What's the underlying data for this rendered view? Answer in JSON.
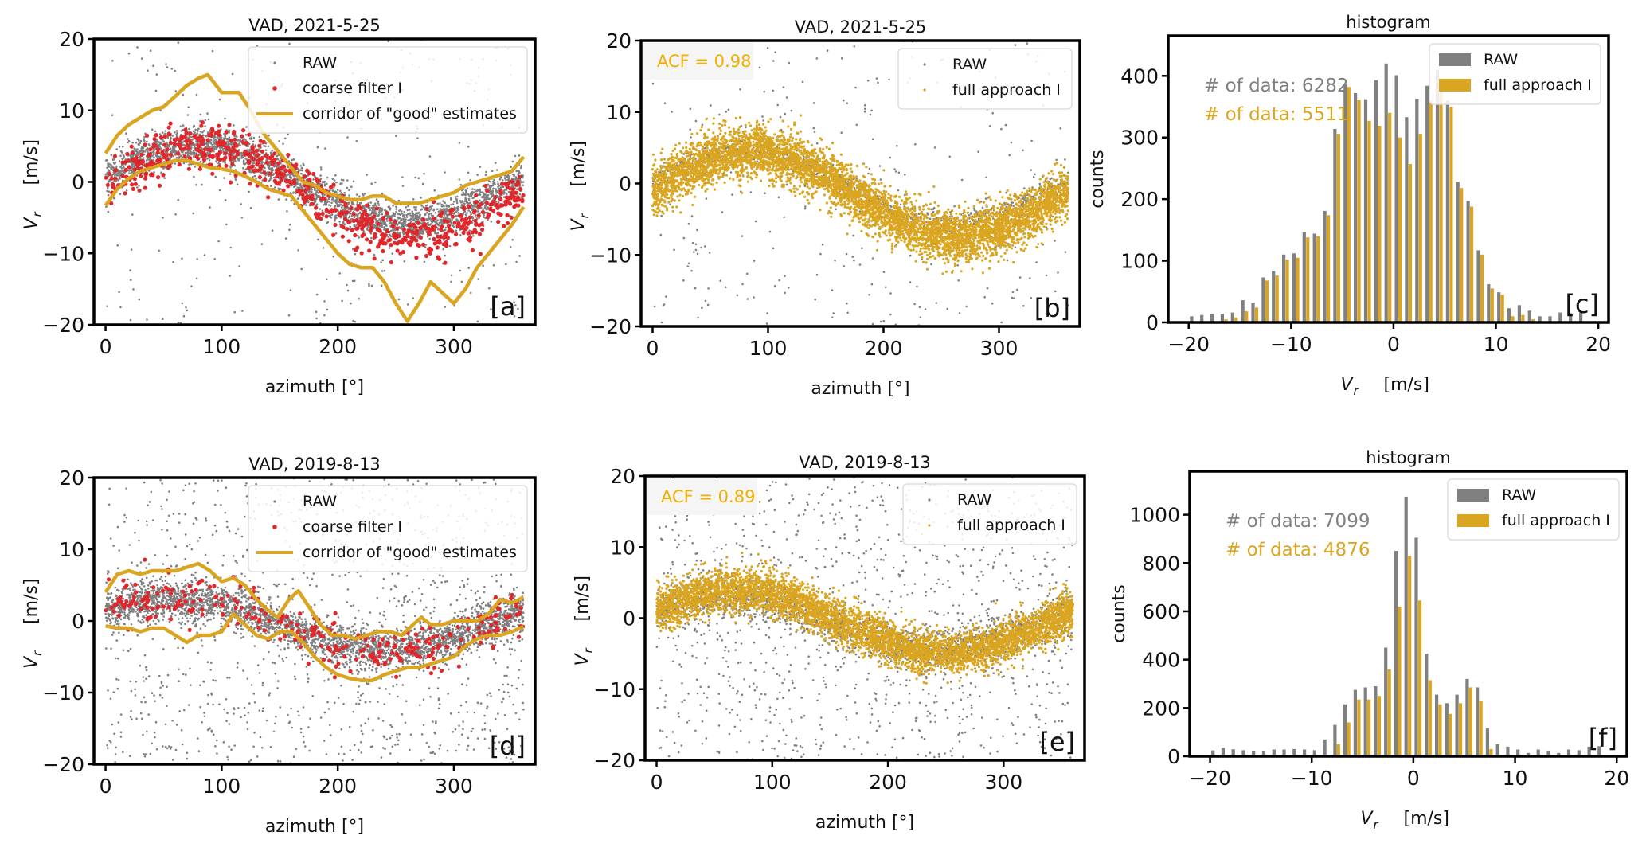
{
  "colors": {
    "raw": "#808080",
    "coarse": "#e0282c",
    "corridor": "#daa520",
    "full": "#daa520",
    "acf": "#f0b000",
    "axis": "#000000"
  },
  "chart_data": [
    {
      "id": "a",
      "type": "scatter",
      "title": "VAD, 2021-5-25",
      "tag": "[a]",
      "xlabel": "azimuth [°]",
      "ylabel": "V_r   [m/s]",
      "ylabel_main": "V",
      "ylabel_sub": "r",
      "ylabel_unit": "[m/s]",
      "xlim": [
        -10,
        370
      ],
      "ylim": [
        -20,
        20
      ],
      "xticks": [
        0,
        100,
        200,
        300
      ],
      "yticks": [
        -20,
        -10,
        0,
        10,
        20
      ],
      "xtick_labels": [
        "0",
        "100",
        "200",
        "300"
      ],
      "ytick_labels": [
        "−20",
        "−10",
        "0",
        "10",
        "20"
      ],
      "legend": {
        "position": "top-right",
        "entries": [
          "RAW",
          "coarse filter I",
          "corridor of \"good\" estimates"
        ]
      },
      "series": [
        {
          "name": "RAW",
          "kind": "points",
          "n_band": 3200,
          "n_noise": 330,
          "band": {
            "amp": 5.5,
            "offset": -0.3,
            "phase_deg": 10,
            "spread": 2.4
          }
        },
        {
          "name": "coarse filter I",
          "kind": "points",
          "n_band": 700,
          "band": {
            "amp": 6.5,
            "offset": -1.5,
            "phase_deg": 5,
            "spread": 3.0
          }
        },
        {
          "name": "corridor upper",
          "kind": "line",
          "x": [
            0,
            10,
            20,
            30,
            40,
            50,
            60,
            70,
            80,
            88,
            100,
            115,
            125,
            135,
            150,
            160,
            170,
            180,
            190,
            200,
            210,
            220,
            230,
            240,
            250,
            260,
            270,
            280,
            290,
            300,
            310,
            320,
            330,
            340,
            350,
            360
          ],
          "y": [
            4,
            6.5,
            8,
            9,
            10,
            10.5,
            12,
            13.5,
            14.5,
            15,
            12.5,
            12.5,
            10,
            7,
            4,
            2,
            0,
            -0.5,
            -1.5,
            -2,
            -2.5,
            -2.5,
            -2,
            -2,
            -3,
            -3,
            -3,
            -2.5,
            -2,
            -1.5,
            -0.5,
            0,
            0.5,
            1,
            1.5,
            3.5
          ]
        },
        {
          "name": "corridor lower",
          "kind": "line",
          "x": [
            0,
            10,
            20,
            30,
            40,
            50,
            60,
            70,
            80,
            90,
            100,
            110,
            120,
            130,
            140,
            150,
            160,
            170,
            180,
            190,
            200,
            210,
            220,
            230,
            240,
            250,
            260,
            270,
            280,
            290,
            300,
            310,
            320,
            330,
            340,
            350,
            360
          ],
          "y": [
            -3.3,
            -1,
            0.5,
            1.5,
            2,
            2.5,
            3,
            3,
            2.5,
            2,
            1.8,
            1.5,
            0.8,
            0,
            -1,
            -1.5,
            -2,
            -4,
            -6,
            -8,
            -10,
            -11.5,
            -12,
            -12,
            -14,
            -17,
            -19.5,
            -17,
            -14,
            -15.5,
            -17,
            -15,
            -12,
            -10,
            -8,
            -6,
            -3.5
          ]
        }
      ]
    },
    {
      "id": "b",
      "type": "scatter",
      "title": "VAD, 2021-5-25",
      "tag": "[b]",
      "xlabel": "azimuth [°]",
      "ylabel_main": "V",
      "ylabel_sub": "r",
      "ylabel_unit": "[m/s]",
      "xlim": [
        -10,
        370
      ],
      "ylim": [
        -20,
        20
      ],
      "xticks": [
        0,
        100,
        200,
        300
      ],
      "yticks": [
        -20,
        -10,
        0,
        10,
        20
      ],
      "xtick_labels": [
        "0",
        "100",
        "200",
        "300"
      ],
      "ytick_labels": [
        "−20",
        "−10",
        "0",
        "10",
        "20"
      ],
      "annotation": "ACF = 0.98",
      "legend": {
        "position": "top-right",
        "entries": [
          "RAW",
          "full approach I"
        ]
      },
      "series": [
        {
          "name": "RAW",
          "kind": "points",
          "n_band": 900,
          "n_noise": 330,
          "band": {
            "amp": 5.0,
            "offset": -0.5,
            "phase_deg": 10,
            "spread": 1.5
          }
        },
        {
          "name": "full approach I",
          "kind": "points",
          "n_band": 5511,
          "band": {
            "amp": 6.0,
            "offset": -1.5,
            "phase_deg": 5,
            "spread": 3.2
          }
        }
      ]
    },
    {
      "id": "c",
      "type": "bar",
      "title": "histogram",
      "tag": "[c]",
      "xlabel_main": "V",
      "xlabel_sub": "r",
      "xlabel_unit": "[m/s]",
      "ylabel": "counts",
      "xlim": [
        -22,
        21
      ],
      "ylim": [
        0,
        465
      ],
      "xticks": [
        -20,
        -10,
        0,
        10,
        20
      ],
      "xtick_labels": [
        "−20",
        "−10",
        "0",
        "10",
        "20"
      ],
      "yticks": [
        0,
        100,
        200,
        300,
        400
      ],
      "ytick_labels": [
        "0",
        "100",
        "200",
        "300",
        "400"
      ],
      "bin_start": -20,
      "bin_width": 1,
      "annotations": [
        "# of data: 6282",
        "# of data: 5511"
      ],
      "legend": {
        "position": "top-right",
        "entries": [
          "RAW",
          "full approach I"
        ]
      },
      "series": [
        {
          "name": "RAW",
          "values": [
            10,
            12,
            14,
            14,
            16,
            36,
            31,
            73,
            83,
            110,
            112,
            146,
            144,
            181,
            314,
            386,
            372,
            362,
            393,
            420,
            401,
            333,
            363,
            384,
            410,
            360,
            228,
            197,
            117,
            62,
            49,
            23,
            28,
            19,
            10,
            10,
            16,
            15,
            16
          ]
        },
        {
          "name": "full approach I",
          "values": [
            0,
            0,
            0,
            5,
            8,
            18,
            24,
            68,
            76,
            102,
            105,
            138,
            140,
            174,
            306,
            382,
            361,
            327,
            319,
            340,
            300,
            257,
            306,
            360,
            378,
            350,
            218,
            188,
            110,
            55,
            45,
            10,
            12,
            5,
            0,
            0,
            0,
            0,
            0
          ]
        }
      ]
    },
    {
      "id": "d",
      "type": "scatter",
      "title": "VAD, 2019-8-13",
      "tag": "[d]",
      "xlabel": "azimuth  [°]",
      "ylabel_main": "V",
      "ylabel_sub": "r",
      "ylabel_unit": "[m/s]",
      "xlim": [
        -10,
        370
      ],
      "ylim": [
        -20,
        20
      ],
      "xticks": [
        0,
        100,
        200,
        300
      ],
      "yticks": [
        -20,
        -10,
        0,
        10,
        20
      ],
      "xtick_labels": [
        "0",
        "100",
        "200",
        "300"
      ],
      "ytick_labels": [
        "−20",
        "−10",
        "0",
        "10",
        "20"
      ],
      "legend": {
        "position": "top-right",
        "entries": [
          "RAW",
          "coarse filter I",
          "corridor of \"good\" estimates"
        ]
      },
      "series": [
        {
          "name": "RAW",
          "kind": "points",
          "n_band": 3200,
          "n_noise": 1100,
          "band": {
            "amp": 3.5,
            "offset": -0.5,
            "phase_deg": 30,
            "spread": 2.6
          }
        },
        {
          "name": "coarse filter I",
          "kind": "points",
          "n_band": 320,
          "band": {
            "amp": 3.8,
            "offset": -0.5,
            "phase_deg": 30,
            "spread": 3.0
          }
        },
        {
          "name": "corridor upper",
          "kind": "line",
          "x": [
            0,
            10,
            20,
            30,
            40,
            50,
            60,
            70,
            80,
            90,
            100,
            110,
            120,
            130,
            140,
            148,
            158,
            166,
            175,
            185,
            195,
            205,
            215,
            225,
            235,
            245,
            255,
            265,
            272,
            280,
            290,
            300,
            310,
            320,
            330,
            340,
            350,
            360
          ],
          "y": [
            4,
            6.5,
            7,
            6.5,
            7,
            7,
            7,
            7.5,
            8,
            7,
            5.5,
            6,
            5,
            3,
            1.5,
            0.5,
            3,
            4.2,
            2,
            -0.5,
            -2,
            -2,
            -2.5,
            -2,
            -1.5,
            -1.5,
            -2,
            -0.5,
            0.5,
            -0.5,
            -0.5,
            0,
            0,
            0,
            1,
            3,
            2.5,
            3.3
          ]
        },
        {
          "name": "corridor lower",
          "kind": "line",
          "x": [
            0,
            10,
            20,
            30,
            40,
            50,
            60,
            70,
            80,
            90,
            100,
            110,
            120,
            130,
            140,
            150,
            160,
            170,
            180,
            190,
            200,
            210,
            220,
            230,
            240,
            250,
            260,
            270,
            280,
            290,
            300,
            310,
            320,
            330,
            340,
            350,
            360
          ],
          "y": [
            -0.7,
            -1,
            -1,
            -1.5,
            -1,
            -1,
            -2,
            -3,
            -2,
            -2,
            -1.5,
            1,
            -0.5,
            -2,
            -2.5,
            -1.5,
            -1.5,
            -3,
            -5,
            -6.5,
            -7.5,
            -8,
            -8.3,
            -8.3,
            -7.5,
            -7,
            -6.5,
            -6.5,
            -6,
            -5.5,
            -5,
            -3.5,
            -2.5,
            -2,
            -2,
            -1.5,
            -0.8
          ]
        }
      ]
    },
    {
      "id": "e",
      "type": "scatter",
      "title": "VAD, 2019-8-13",
      "tag": "[e]",
      "xlabel": "azimuth  [°]",
      "ylabel_main": "V",
      "ylabel_sub": "r",
      "ylabel_unit": "[m/s]",
      "xlim": [
        -10,
        370
      ],
      "ylim": [
        -20,
        20
      ],
      "xticks": [
        0,
        100,
        200,
        300
      ],
      "yticks": [
        -20,
        -10,
        0,
        10,
        20
      ],
      "xtick_labels": [
        "0",
        "100",
        "200",
        "300"
      ],
      "ytick_labels": [
        "−20",
        "−10",
        "0",
        "10",
        "20"
      ],
      "annotation": "ACF = 0.89",
      "legend": {
        "position": "top-right",
        "entries": [
          "RAW",
          "full approach I"
        ]
      },
      "series": [
        {
          "name": "RAW",
          "kind": "points",
          "n_band": 1800,
          "n_noise": 1100,
          "band": {
            "amp": 3.5,
            "offset": -0.8,
            "phase_deg": 30,
            "spread": 2.5
          }
        },
        {
          "name": "full approach I",
          "kind": "points",
          "n_band": 4876,
          "band": {
            "amp": 4.5,
            "offset": -0.5,
            "phase_deg": 20,
            "spread": 2.8
          }
        }
      ]
    },
    {
      "id": "f",
      "type": "bar",
      "title": "histogram",
      "tag": "[f]",
      "xlabel_main": "V",
      "xlabel_sub": "r",
      "xlabel_unit": "[m/s]",
      "ylabel": "counts",
      "xlim": [
        -22,
        21
      ],
      "ylim": [
        0,
        1180
      ],
      "xticks": [
        -20,
        -10,
        0,
        10,
        20
      ],
      "xtick_labels": [
        "−20",
        "−10",
        "0",
        "10",
        "20"
      ],
      "yticks": [
        0,
        200,
        400,
        600,
        800,
        1000
      ],
      "ytick_labels": [
        "0",
        "200",
        "400",
        "600",
        "800",
        "1000"
      ],
      "bin_start": -20,
      "bin_width": 1,
      "annotations": [
        "# of data: 7099",
        "# of data: 4876"
      ],
      "legend": {
        "position": "top-right",
        "entries": [
          "RAW",
          "full approach I"
        ]
      },
      "series": [
        {
          "name": "RAW",
          "values": [
            24,
            35,
            29,
            25,
            20,
            20,
            28,
            28,
            30,
            28,
            25,
            70,
            130,
            215,
            275,
            285,
            290,
            450,
            850,
            1075,
            905,
            425,
            255,
            220,
            255,
            320,
            285,
            115,
            50,
            40,
            28,
            14,
            28,
            20,
            14,
            28,
            25,
            40,
            42
          ]
        },
        {
          "name": "full approach I",
          "values": [
            0,
            0,
            0,
            0,
            0,
            0,
            0,
            0,
            0,
            0,
            0,
            0,
            50,
            140,
            235,
            235,
            250,
            360,
            620,
            830,
            645,
            315,
            215,
            175,
            220,
            285,
            230,
            30,
            0,
            0,
            0,
            0,
            0,
            0,
            0,
            0,
            0,
            0,
            0
          ]
        }
      ]
    }
  ]
}
